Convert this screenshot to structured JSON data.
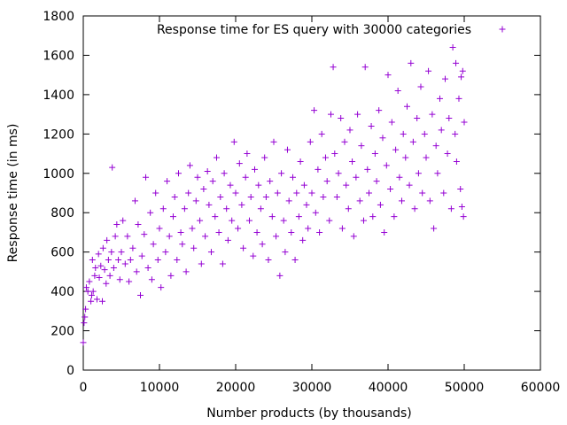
{
  "chart_data": {
    "type": "scatter",
    "xlabel": "Number products (by thousands)",
    "ylabel": "Response time (in ms)",
    "xlim": [
      0,
      60000
    ],
    "ylim": [
      0,
      1800
    ],
    "x_ticks": [
      0,
      10000,
      20000,
      30000,
      40000,
      50000,
      60000
    ],
    "y_ticks": [
      0,
      200,
      400,
      600,
      800,
      1000,
      1200,
      1400,
      1600,
      1800
    ],
    "grid": false,
    "legend_position": "top",
    "marker": "plus",
    "series": [
      {
        "name": "Response time for ES query with 30000 categories",
        "color": "#9400d3",
        "points": [
          [
            0,
            140
          ],
          [
            100,
            240
          ],
          [
            200,
            270
          ],
          [
            300,
            310
          ],
          [
            400,
            420
          ],
          [
            600,
            400
          ],
          [
            800,
            450
          ],
          [
            1000,
            350
          ],
          [
            1100,
            380
          ],
          [
            1200,
            560
          ],
          [
            1300,
            400
          ],
          [
            1500,
            480
          ],
          [
            1600,
            520
          ],
          [
            1800,
            360
          ],
          [
            2000,
            590
          ],
          [
            2100,
            470
          ],
          [
            2300,
            530
          ],
          [
            2500,
            350
          ],
          [
            2600,
            620
          ],
          [
            2800,
            510
          ],
          [
            3000,
            440
          ],
          [
            3100,
            660
          ],
          [
            3300,
            560
          ],
          [
            3500,
            480
          ],
          [
            3700,
            600
          ],
          [
            3800,
            1030
          ],
          [
            4000,
            520
          ],
          [
            4200,
            680
          ],
          [
            4400,
            740
          ],
          [
            4600,
            560
          ],
          [
            4800,
            460
          ],
          [
            5000,
            600
          ],
          [
            5200,
            760
          ],
          [
            5500,
            540
          ],
          [
            5800,
            680
          ],
          [
            6000,
            450
          ],
          [
            6200,
            560
          ],
          [
            6500,
            620
          ],
          [
            6800,
            860
          ],
          [
            7000,
            500
          ],
          [
            7200,
            740
          ],
          [
            7500,
            380
          ],
          [
            7700,
            580
          ],
          [
            8000,
            690
          ],
          [
            8200,
            980
          ],
          [
            8500,
            520
          ],
          [
            8800,
            800
          ],
          [
            9000,
            460
          ],
          [
            9200,
            640
          ],
          [
            9500,
            900
          ],
          [
            9800,
            560
          ],
          [
            10000,
            720
          ],
          [
            10200,
            420
          ],
          [
            10500,
            820
          ],
          [
            10800,
            600
          ],
          [
            11000,
            960
          ],
          [
            11300,
            680
          ],
          [
            11500,
            480
          ],
          [
            11800,
            780
          ],
          [
            12000,
            880
          ],
          [
            12300,
            560
          ],
          [
            12500,
            1000
          ],
          [
            12800,
            700
          ],
          [
            13000,
            640
          ],
          [
            13300,
            820
          ],
          [
            13500,
            500
          ],
          [
            13800,
            900
          ],
          [
            14000,
            1040
          ],
          [
            14300,
            720
          ],
          [
            14500,
            620
          ],
          [
            14800,
            860
          ],
          [
            15000,
            980
          ],
          [
            15300,
            760
          ],
          [
            15500,
            540
          ],
          [
            15800,
            920
          ],
          [
            16000,
            680
          ],
          [
            16300,
            1010
          ],
          [
            16500,
            840
          ],
          [
            16800,
            600
          ],
          [
            17000,
            960
          ],
          [
            17300,
            780
          ],
          [
            17500,
            1080
          ],
          [
            17800,
            700
          ],
          [
            18000,
            880
          ],
          [
            18300,
            540
          ],
          [
            18500,
            1000
          ],
          [
            18800,
            820
          ],
          [
            19000,
            660
          ],
          [
            19300,
            940
          ],
          [
            19500,
            760
          ],
          [
            19800,
            1160
          ],
          [
            20000,
            900
          ],
          [
            20300,
            720
          ],
          [
            20500,
            1050
          ],
          [
            20800,
            840
          ],
          [
            21000,
            620
          ],
          [
            21300,
            980
          ],
          [
            21500,
            1100
          ],
          [
            21800,
            760
          ],
          [
            22000,
            880
          ],
          [
            22300,
            580
          ],
          [
            22500,
            1020
          ],
          [
            22800,
            700
          ],
          [
            23000,
            940
          ],
          [
            23300,
            820
          ],
          [
            23500,
            640
          ],
          [
            23800,
            1080
          ],
          [
            24000,
            880
          ],
          [
            24300,
            560
          ],
          [
            24500,
            960
          ],
          [
            24800,
            780
          ],
          [
            25000,
            1160
          ],
          [
            25300,
            680
          ],
          [
            25500,
            900
          ],
          [
            25800,
            480
          ],
          [
            26000,
            1000
          ],
          [
            26300,
            760
          ],
          [
            26500,
            600
          ],
          [
            26800,
            1120
          ],
          [
            27000,
            860
          ],
          [
            27300,
            700
          ],
          [
            27500,
            980
          ],
          [
            27800,
            560
          ],
          [
            28000,
            900
          ],
          [
            28300,
            780
          ],
          [
            28500,
            1060
          ],
          [
            28800,
            660
          ],
          [
            29000,
            940
          ],
          [
            29300,
            840
          ],
          [
            29500,
            720
          ],
          [
            29800,
            1160
          ],
          [
            30000,
            900
          ],
          [
            30300,
            1320
          ],
          [
            30500,
            800
          ],
          [
            30800,
            1020
          ],
          [
            31000,
            700
          ],
          [
            31300,
            1200
          ],
          [
            31500,
            880
          ],
          [
            31800,
            1080
          ],
          [
            32000,
            960
          ],
          [
            32300,
            760
          ],
          [
            32500,
            1300
          ],
          [
            32800,
            1540
          ],
          [
            33000,
            1100
          ],
          [
            33300,
            880
          ],
          [
            33500,
            1000
          ],
          [
            33800,
            1280
          ],
          [
            34000,
            720
          ],
          [
            34300,
            1160
          ],
          [
            34500,
            940
          ],
          [
            34800,
            820
          ],
          [
            35000,
            1220
          ],
          [
            35300,
            1060
          ],
          [
            35500,
            680
          ],
          [
            35800,
            980
          ],
          [
            36000,
            1300
          ],
          [
            36300,
            860
          ],
          [
            36500,
            1140
          ],
          [
            36800,
            760
          ],
          [
            37000,
            1540
          ],
          [
            37300,
            1020
          ],
          [
            37500,
            900
          ],
          [
            37800,
            1240
          ],
          [
            38000,
            780
          ],
          [
            38300,
            1100
          ],
          [
            38500,
            960
          ],
          [
            38800,
            1320
          ],
          [
            39000,
            840
          ],
          [
            39300,
            1180
          ],
          [
            39500,
            700
          ],
          [
            39800,
            1040
          ],
          [
            40000,
            1500
          ],
          [
            40300,
            920
          ],
          [
            40500,
            1260
          ],
          [
            40800,
            780
          ],
          [
            41000,
            1120
          ],
          [
            41300,
            1420
          ],
          [
            41500,
            980
          ],
          [
            41800,
            860
          ],
          [
            42000,
            1200
          ],
          [
            42300,
            1080
          ],
          [
            42500,
            1340
          ],
          [
            42800,
            940
          ],
          [
            43000,
            1560
          ],
          [
            43300,
            1160
          ],
          [
            43500,
            820
          ],
          [
            43800,
            1280
          ],
          [
            44000,
            1000
          ],
          [
            44300,
            1440
          ],
          [
            44500,
            900
          ],
          [
            44800,
            1200
          ],
          [
            45000,
            1080
          ],
          [
            45300,
            1520
          ],
          [
            45500,
            860
          ],
          [
            45800,
            1300
          ],
          [
            46000,
            720
          ],
          [
            46300,
            1140
          ],
          [
            46500,
            1000
          ],
          [
            46800,
            1380
          ],
          [
            47000,
            1220
          ],
          [
            47300,
            900
          ],
          [
            47500,
            1480
          ],
          [
            47800,
            1100
          ],
          [
            48000,
            1280
          ],
          [
            48300,
            820
          ],
          [
            48500,
            1640
          ],
          [
            48800,
            1200
          ],
          [
            49000,
            1060
          ],
          [
            49300,
            1380
          ],
          [
            49500,
            920
          ],
          [
            49800,
            1520
          ],
          [
            50000,
            1260
          ],
          [
            49700,
            830
          ],
          [
            49900,
            780
          ],
          [
            48900,
            1560
          ],
          [
            49600,
            1490
          ]
        ]
      }
    ]
  }
}
